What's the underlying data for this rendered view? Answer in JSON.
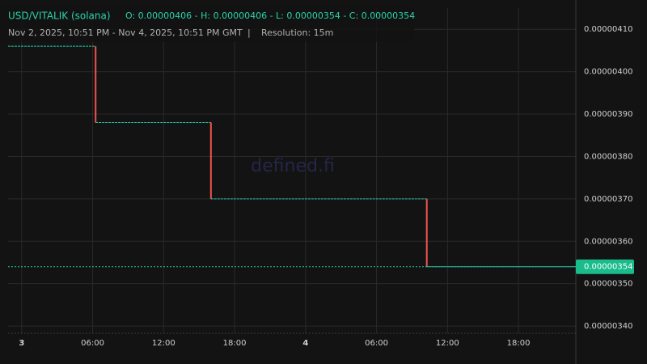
{
  "chart_data": {
    "type": "step",
    "title": "USD/VITALIK (solana)",
    "ohlc_text": "O: 0.00000406 - H: 0.00000406 - L: 0.00000354 - C: 0.00000354",
    "subtitle": "Nov 2, 2025, 10:51 PM - Nov 4, 2025, 10:51 PM GMT",
    "separator": "|",
    "resolution": "Resolution: 15m",
    "watermark": "defined.fi",
    "xlim": [
      "2025-11-02T22:51",
      "2025-11-04T22:51"
    ],
    "xticks": [
      {
        "value": "2025-11-03T00:00",
        "label": "3"
      },
      {
        "value": "2025-11-03T06:00",
        "label": "06:00"
      },
      {
        "value": "2025-11-03T12:00",
        "label": "12:00"
      },
      {
        "value": "2025-11-03T18:00",
        "label": "18:00"
      },
      {
        "value": "2025-11-04T00:00",
        "label": "4"
      },
      {
        "value": "2025-11-04T06:00",
        "label": "06:00"
      },
      {
        "value": "2025-11-04T12:00",
        "label": "12:00"
      },
      {
        "value": "2025-11-04T18:00",
        "label": "18:00"
      }
    ],
    "ylim": [
      3.383e-06,
      4.15e-06
    ],
    "yticks": [
      {
        "value": 3.4e-06,
        "label": "0.00000340"
      },
      {
        "value": 3.5e-06,
        "label": "0.00000350"
      },
      {
        "value": 3.6e-06,
        "label": "0.00000360"
      },
      {
        "value": 3.7e-06,
        "label": "0.00000370"
      },
      {
        "value": 3.8e-06,
        "label": "0.00000380"
      },
      {
        "value": 3.9e-06,
        "label": "0.00000390"
      },
      {
        "value": 4e-06,
        "label": "0.00000400"
      },
      {
        "value": 4.1e-06,
        "label": "0.00000410"
      }
    ],
    "grid": true,
    "series": [
      {
        "color": "#26c6a6",
        "drop_color": "#ef5350",
        "x": [
          "2025-11-02T22:51",
          "2025-11-03T06:15",
          "2025-11-03T16:00",
          "2025-11-04T10:15",
          "2025-11-04T22:51"
        ],
        "values": [
          4.06e-06,
          3.88e-06,
          3.7e-06,
          3.54e-06,
          3.54e-06
        ]
      }
    ],
    "last_price": {
      "value": 3.54e-06,
      "label": "0.00000354"
    }
  }
}
